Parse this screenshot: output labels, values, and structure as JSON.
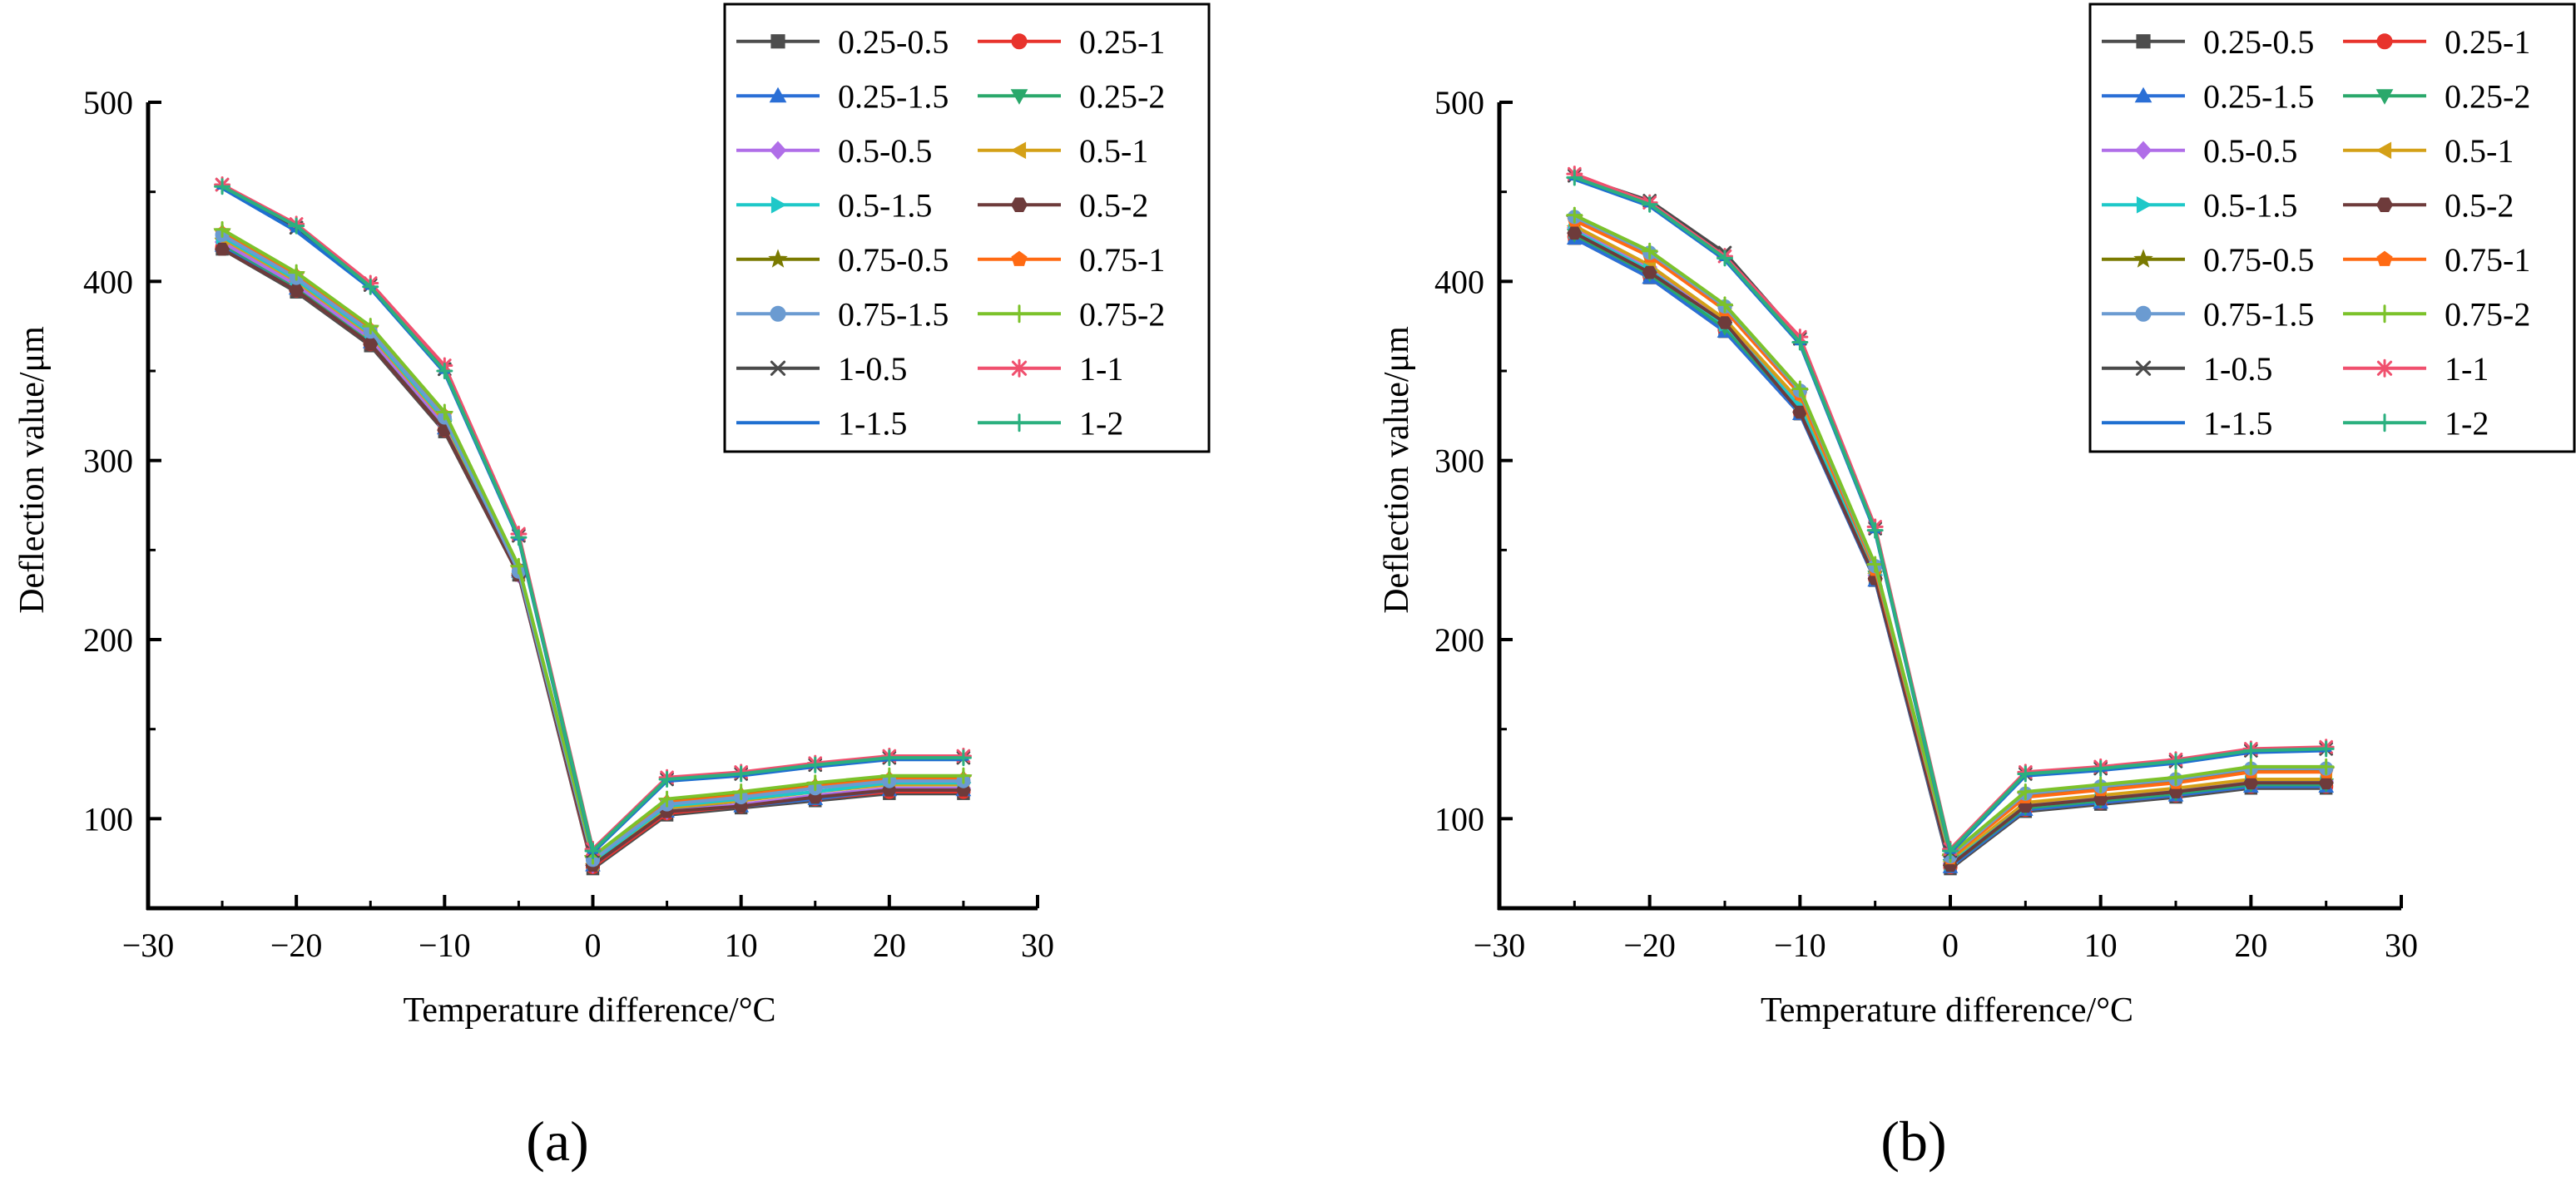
{
  "chart_data": [
    {
      "type": "line",
      "panel_label": "(a)",
      "xlabel": "Temperature difference/°C",
      "ylabel": "Deflection value/μm",
      "xlim": [
        -30,
        30
      ],
      "ylim": [
        50,
        500
      ],
      "xticks": [
        -30,
        -20,
        -10,
        0,
        10,
        20,
        30
      ],
      "yticks": [
        100,
        200,
        300,
        400,
        500
      ],
      "x": [
        -25,
        -20,
        -15,
        -10,
        -5,
        0,
        5,
        10,
        15,
        20,
        25
      ],
      "legend_position": "top-right",
      "series": [
        {
          "name": "0.25-0.5",
          "values": [
            418,
            394,
            364,
            316,
            236,
            72,
            102,
            106,
            110,
            114,
            114
          ]
        },
        {
          "name": "0.25-1",
          "values": [
            419,
            395,
            365,
            317,
            237,
            73,
            103,
            107,
            111,
            115,
            115
          ]
        },
        {
          "name": "0.25-1.5",
          "values": [
            420,
            396,
            366,
            318,
            238,
            74,
            104,
            107,
            111,
            116,
            116
          ]
        },
        {
          "name": "0.25-2",
          "values": [
            421,
            397,
            367,
            319,
            239,
            75,
            105,
            108,
            112,
            117,
            117
          ]
        },
        {
          "name": "0.5-0.5",
          "values": [
            422,
            398,
            368,
            320,
            236,
            74,
            104,
            108,
            113,
            117,
            117
          ]
        },
        {
          "name": "0.5-1",
          "values": [
            424,
            400,
            370,
            322,
            237,
            75,
            106,
            110,
            115,
            119,
            119
          ]
        },
        {
          "name": "0.5-1.5",
          "values": [
            425,
            401,
            371,
            323,
            238,
            76,
            107,
            111,
            115,
            120,
            120
          ]
        },
        {
          "name": "0.5-2",
          "values": [
            418,
            395,
            365,
            317,
            236,
            74,
            104,
            107,
            112,
            116,
            116
          ]
        },
        {
          "name": "0.75-0.5",
          "values": [
            428,
            404,
            374,
            326,
            240,
            78,
            110,
            114,
            119,
            123,
            123
          ]
        },
        {
          "name": "0.75-1",
          "values": [
            427,
            403,
            373,
            325,
            239,
            77,
            109,
            113,
            118,
            122,
            122
          ]
        },
        {
          "name": "0.75-1.5",
          "values": [
            426,
            402,
            372,
            324,
            238,
            77,
            108,
            112,
            117,
            121,
            121
          ]
        },
        {
          "name": "0.75-2",
          "values": [
            429,
            405,
            375,
            327,
            241,
            79,
            111,
            115,
            120,
            124,
            124
          ]
        },
        {
          "name": "1-0.5",
          "values": [
            454,
            430,
            398,
            351,
            258,
            82,
            122,
            125,
            130,
            134,
            134
          ]
        },
        {
          "name": "1-1",
          "values": [
            454,
            432,
            399,
            353,
            259,
            83,
            123,
            126,
            131,
            135,
            135
          ]
        },
        {
          "name": "1-1.5",
          "values": [
            452,
            428,
            396,
            349,
            256,
            81,
            121,
            124,
            129,
            133,
            133
          ]
        },
        {
          "name": "1-2",
          "values": [
            453,
            431,
            397,
            350,
            257,
            82,
            122,
            125,
            130,
            134,
            134
          ]
        }
      ]
    },
    {
      "type": "line",
      "panel_label": "(b)",
      "xlabel": "Temperature difference/°C",
      "ylabel": "Deflection value/μm",
      "xlim": [
        -30,
        30
      ],
      "ylim": [
        50,
        500
      ],
      "xticks": [
        -30,
        -20,
        -10,
        0,
        10,
        20,
        30
      ],
      "yticks": [
        100,
        200,
        300,
        400,
        500
      ],
      "x": [
        -25,
        -20,
        -15,
        -10,
        -5,
        0,
        5,
        10,
        15,
        20,
        25
      ],
      "legend_position": "top-right",
      "series": [
        {
          "name": "0.25-0.5",
          "values": [
            424,
            402,
            372,
            326,
            233,
            72,
            104,
            108,
            112,
            117,
            117
          ]
        },
        {
          "name": "0.25-1",
          "values": [
            425,
            403,
            373,
            327,
            234,
            73,
            105,
            109,
            113,
            118,
            118
          ]
        },
        {
          "name": "0.25-1.5",
          "values": [
            424,
            402,
            372,
            326,
            233,
            73,
            105,
            109,
            113,
            118,
            118
          ]
        },
        {
          "name": "0.25-2",
          "values": [
            426,
            404,
            374,
            328,
            235,
            74,
            106,
            110,
            114,
            119,
            119
          ]
        },
        {
          "name": "0.5-0.5",
          "values": [
            430,
            408,
            378,
            332,
            236,
            75,
            108,
            112,
            116,
            121,
            121
          ]
        },
        {
          "name": "0.5-1",
          "values": [
            431,
            409,
            379,
            333,
            237,
            76,
            109,
            113,
            117,
            122,
            122
          ]
        },
        {
          "name": "0.5-1.5",
          "values": [
            428,
            406,
            376,
            330,
            236,
            75,
            107,
            111,
            115,
            120,
            120
          ]
        },
        {
          "name": "0.5-2",
          "values": [
            427,
            405,
            377,
            327,
            234,
            74,
            107,
            111,
            115,
            120,
            120
          ]
        },
        {
          "name": "0.75-0.5",
          "values": [
            435,
            415,
            385,
            338,
            240,
            78,
            113,
            117,
            121,
            127,
            127
          ]
        },
        {
          "name": "0.75-1",
          "values": [
            434,
            414,
            384,
            337,
            239,
            78,
            112,
            116,
            120,
            126,
            126
          ]
        },
        {
          "name": "0.75-1.5",
          "values": [
            436,
            416,
            386,
            339,
            241,
            79,
            114,
            118,
            122,
            128,
            128
          ]
        },
        {
          "name": "0.75-2",
          "values": [
            437,
            417,
            387,
            340,
            242,
            80,
            115,
            119,
            123,
            129,
            129
          ]
        },
        {
          "name": "1-0.5",
          "values": [
            459,
            445,
            416,
            368,
            262,
            82,
            125,
            128,
            132,
            138,
            139
          ]
        },
        {
          "name": "1-1",
          "values": [
            460,
            444,
            414,
            369,
            263,
            83,
            126,
            129,
            133,
            139,
            140
          ]
        },
        {
          "name": "1-1.5",
          "values": [
            457,
            442,
            412,
            365,
            260,
            81,
            124,
            127,
            131,
            137,
            138
          ]
        },
        {
          "name": "1-2",
          "values": [
            458,
            443,
            413,
            366,
            261,
            82,
            125,
            128,
            132,
            138,
            139
          ]
        }
      ]
    }
  ],
  "styles": [
    {
      "color": "#4d4d4d",
      "marker": "square"
    },
    {
      "color": "#e8332c",
      "marker": "circle"
    },
    {
      "color": "#2a6fd6",
      "marker": "triangle-up"
    },
    {
      "color": "#2aa86b",
      "marker": "triangle-down"
    },
    {
      "color": "#b06ee8",
      "marker": "diamond"
    },
    {
      "color": "#d4a017",
      "marker": "triangle-left"
    },
    {
      "color": "#1ec8c8",
      "marker": "triangle-right"
    },
    {
      "color": "#6e3b3b",
      "marker": "hexagon"
    },
    {
      "color": "#7a7a00",
      "marker": "star"
    },
    {
      "color": "#ff6a13",
      "marker": "pentagon"
    },
    {
      "color": "#6b9bd1",
      "marker": "circle"
    },
    {
      "color": "#7cc22a",
      "marker": "plus"
    },
    {
      "color": "#4a4a4a",
      "marker": "x"
    },
    {
      "color": "#f0506e",
      "marker": "asterisk"
    },
    {
      "color": "#1f6fd0",
      "marker": "dash"
    },
    {
      "color": "#2bb07f",
      "marker": "plus"
    }
  ]
}
